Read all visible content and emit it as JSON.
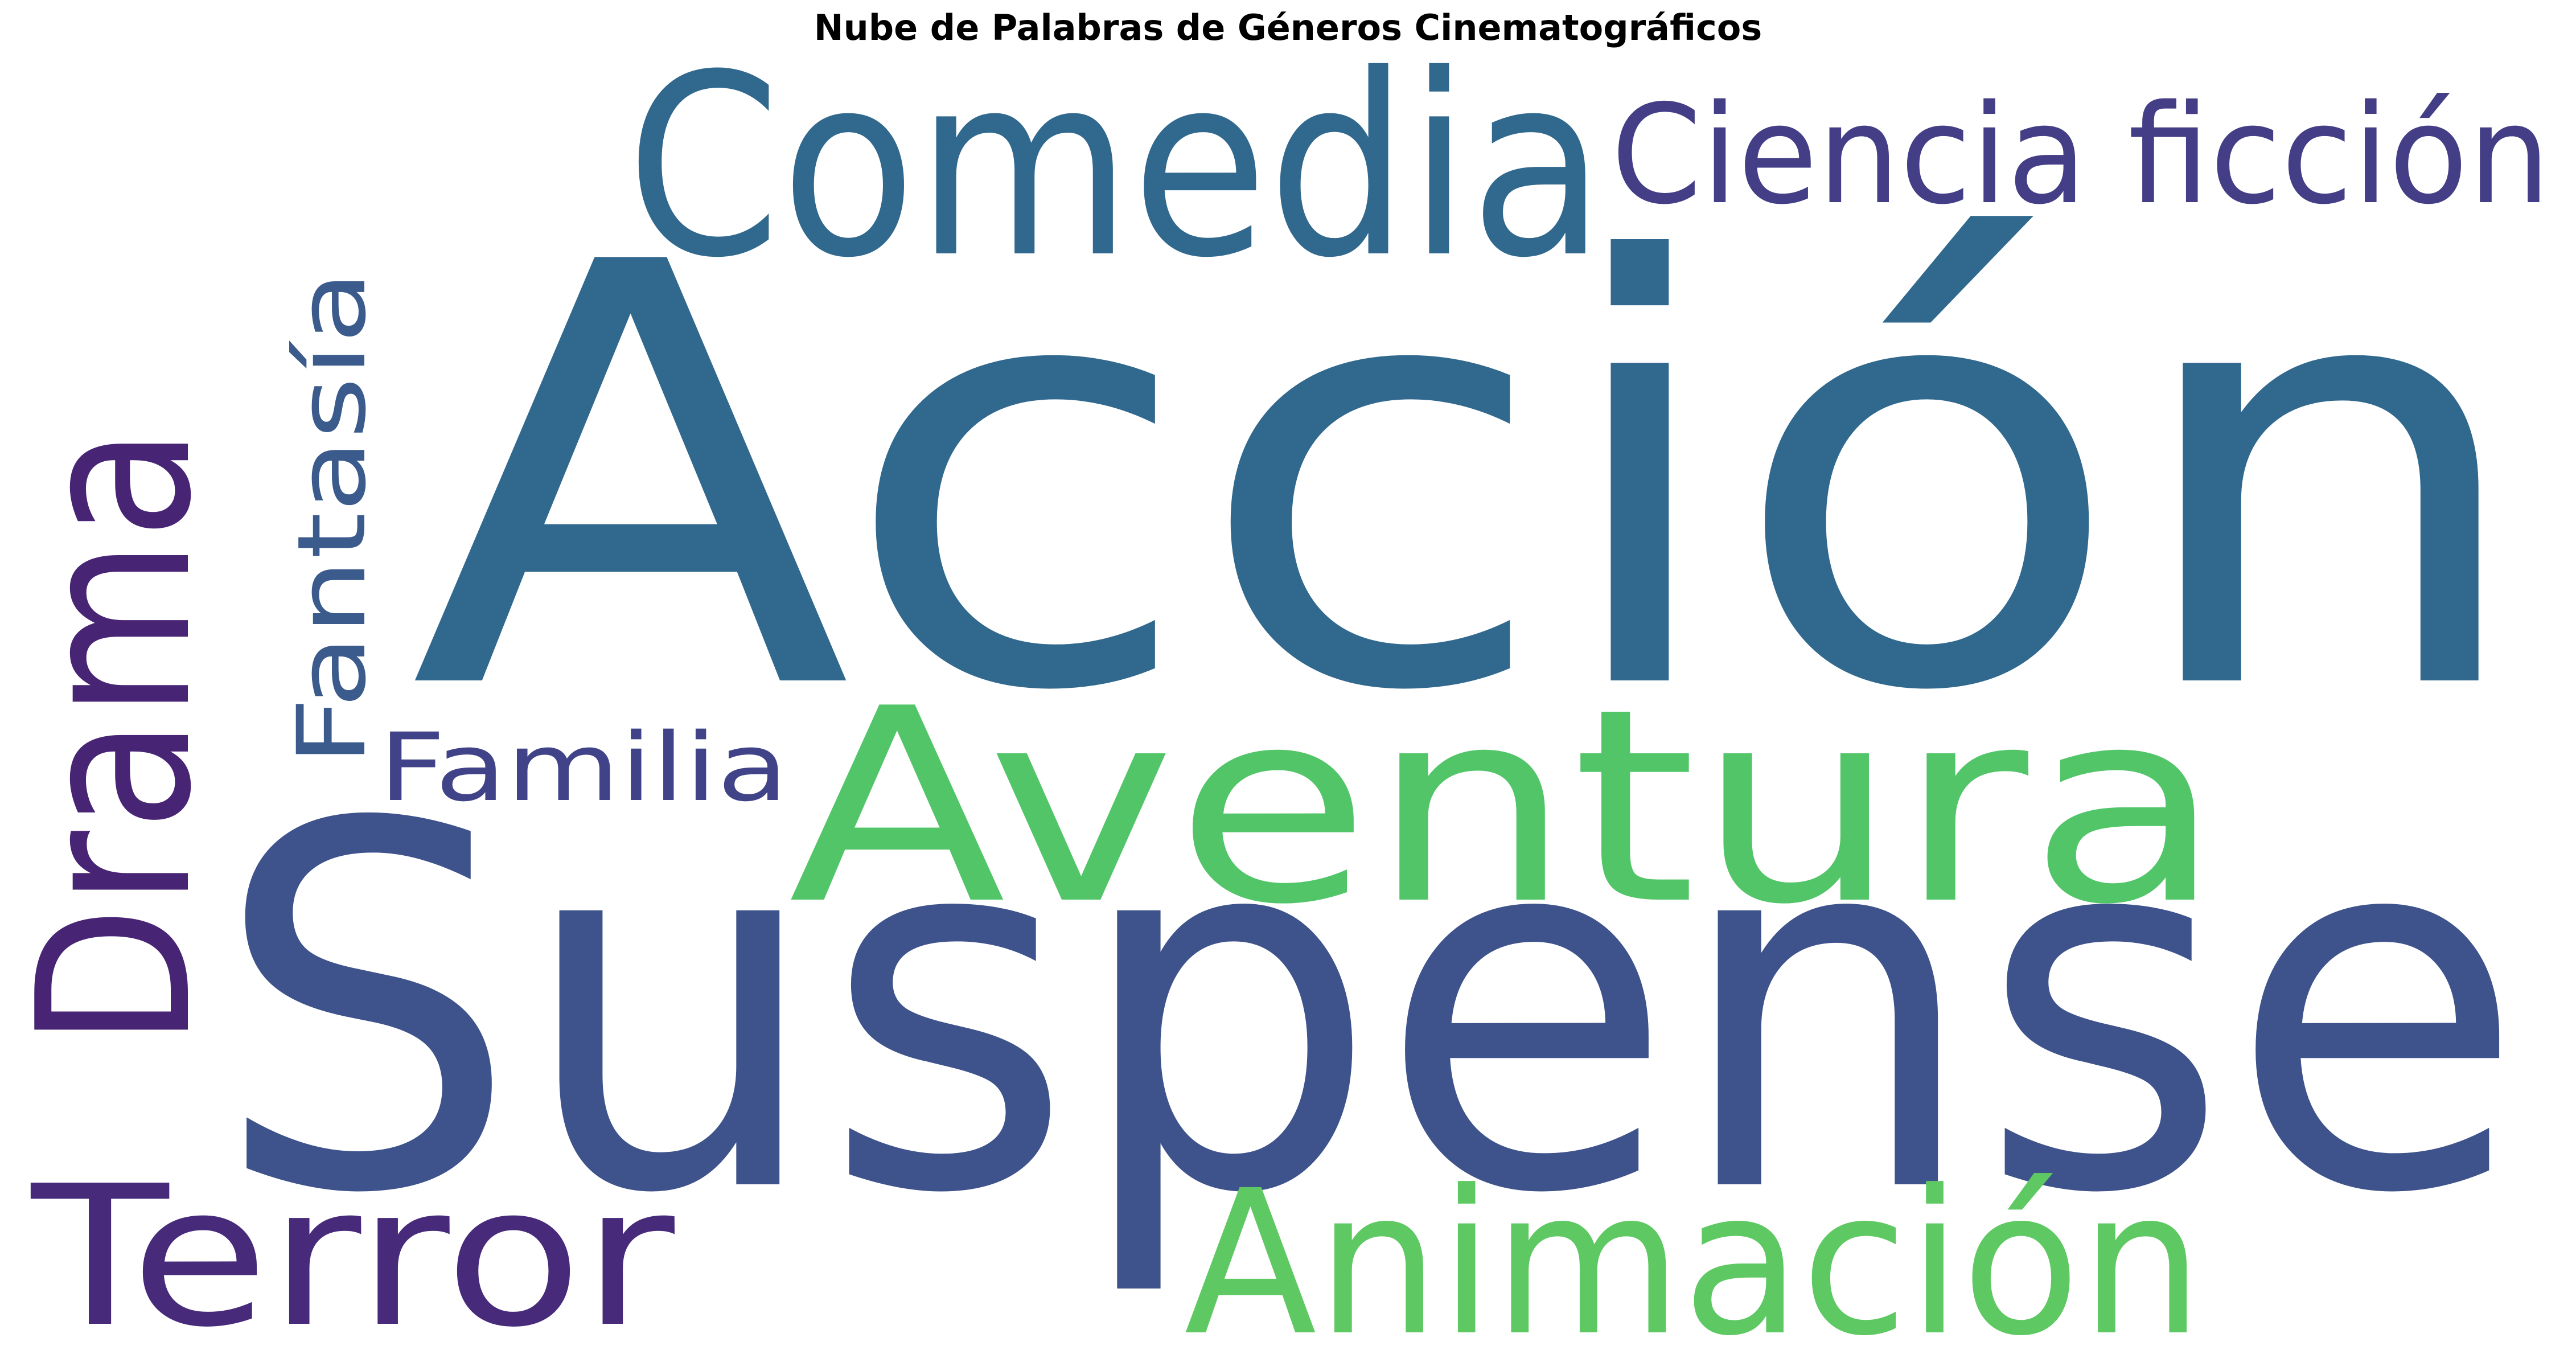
{
  "chart_data": {
    "type": "wordcloud",
    "title": "Nube de Palabras de Géneros Cinematográficos",
    "words": [
      {
        "text": "Acción",
        "color": "#31688e",
        "weight": 1.0
      },
      {
        "text": "Suspense",
        "color": "#3e528b",
        "weight": 0.95
      },
      {
        "text": "Comedia",
        "color": "#31688e",
        "weight": 0.55
      },
      {
        "text": "Aventura",
        "color": "#52c569",
        "weight": 0.58
      },
      {
        "text": "Animación",
        "color": "#5ec962",
        "weight": 0.45
      },
      {
        "text": "Drama",
        "color": "#482475",
        "weight": 0.5
      },
      {
        "text": "Terror",
        "color": "#472a7a",
        "weight": 0.45
      },
      {
        "text": "Ciencia ficción",
        "color": "#433e85",
        "weight": 0.32
      },
      {
        "text": "Fantasía",
        "color": "#3b5b8c",
        "weight": 0.3
      },
      {
        "text": "Familia",
        "color": "#404387",
        "weight": 0.28
      }
    ],
    "background": "#ffffff"
  }
}
